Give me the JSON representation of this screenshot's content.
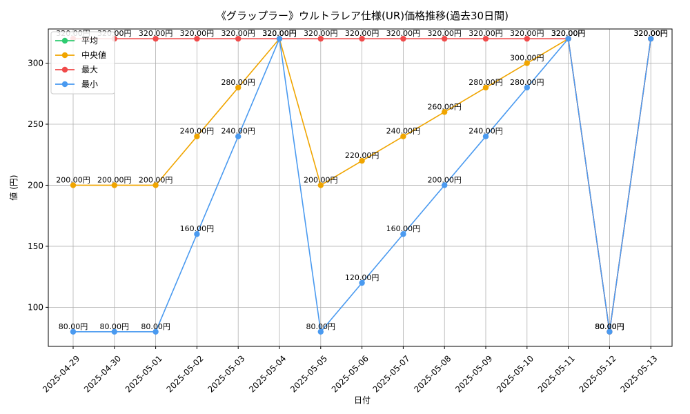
{
  "chart_data": {
    "type": "line",
    "title": "《グラップラー》ウルトラレア仕様(UR)価格推移(過去30日間)",
    "xlabel": "日付",
    "ylabel": "値 (円)",
    "ylim": [
      68,
      328
    ],
    "yticks": [
      100,
      150,
      200,
      250,
      300
    ],
    "grid": true,
    "legend_position": "top-left",
    "value_suffix": "円",
    "categories": [
      "2025-04-29",
      "2025-04-30",
      "2025-05-01",
      "2025-05-02",
      "2025-05-03",
      "2025-05-04",
      "2025-05-05",
      "2025-05-06",
      "2025-05-07",
      "2025-05-08",
      "2025-05-09",
      "2025-05-10",
      "2025-05-11",
      "2025-05-12",
      "2025-05-13"
    ],
    "series": [
      {
        "name": "平均",
        "color": "#2ecc71",
        "values": [
          null,
          null,
          null,
          null,
          null,
          null,
          null,
          null,
          null,
          null,
          null,
          null,
          null,
          null,
          null
        ]
      },
      {
        "name": "中央値",
        "color": "#f0a500",
        "values": [
          200,
          200,
          200,
          240,
          280,
          320,
          200,
          220,
          240,
          260,
          280,
          300,
          320,
          80,
          320
        ]
      },
      {
        "name": "最大",
        "color": "#f04a4a",
        "values": [
          320,
          320,
          320,
          320,
          320,
          320,
          320,
          320,
          320,
          320,
          320,
          320,
          320,
          80,
          320
        ]
      },
      {
        "name": "最小",
        "color": "#4a9af0",
        "values": [
          80,
          80,
          80,
          160,
          240,
          320,
          80,
          120,
          160,
          200,
          240,
          280,
          320,
          80,
          320
        ]
      }
    ]
  }
}
